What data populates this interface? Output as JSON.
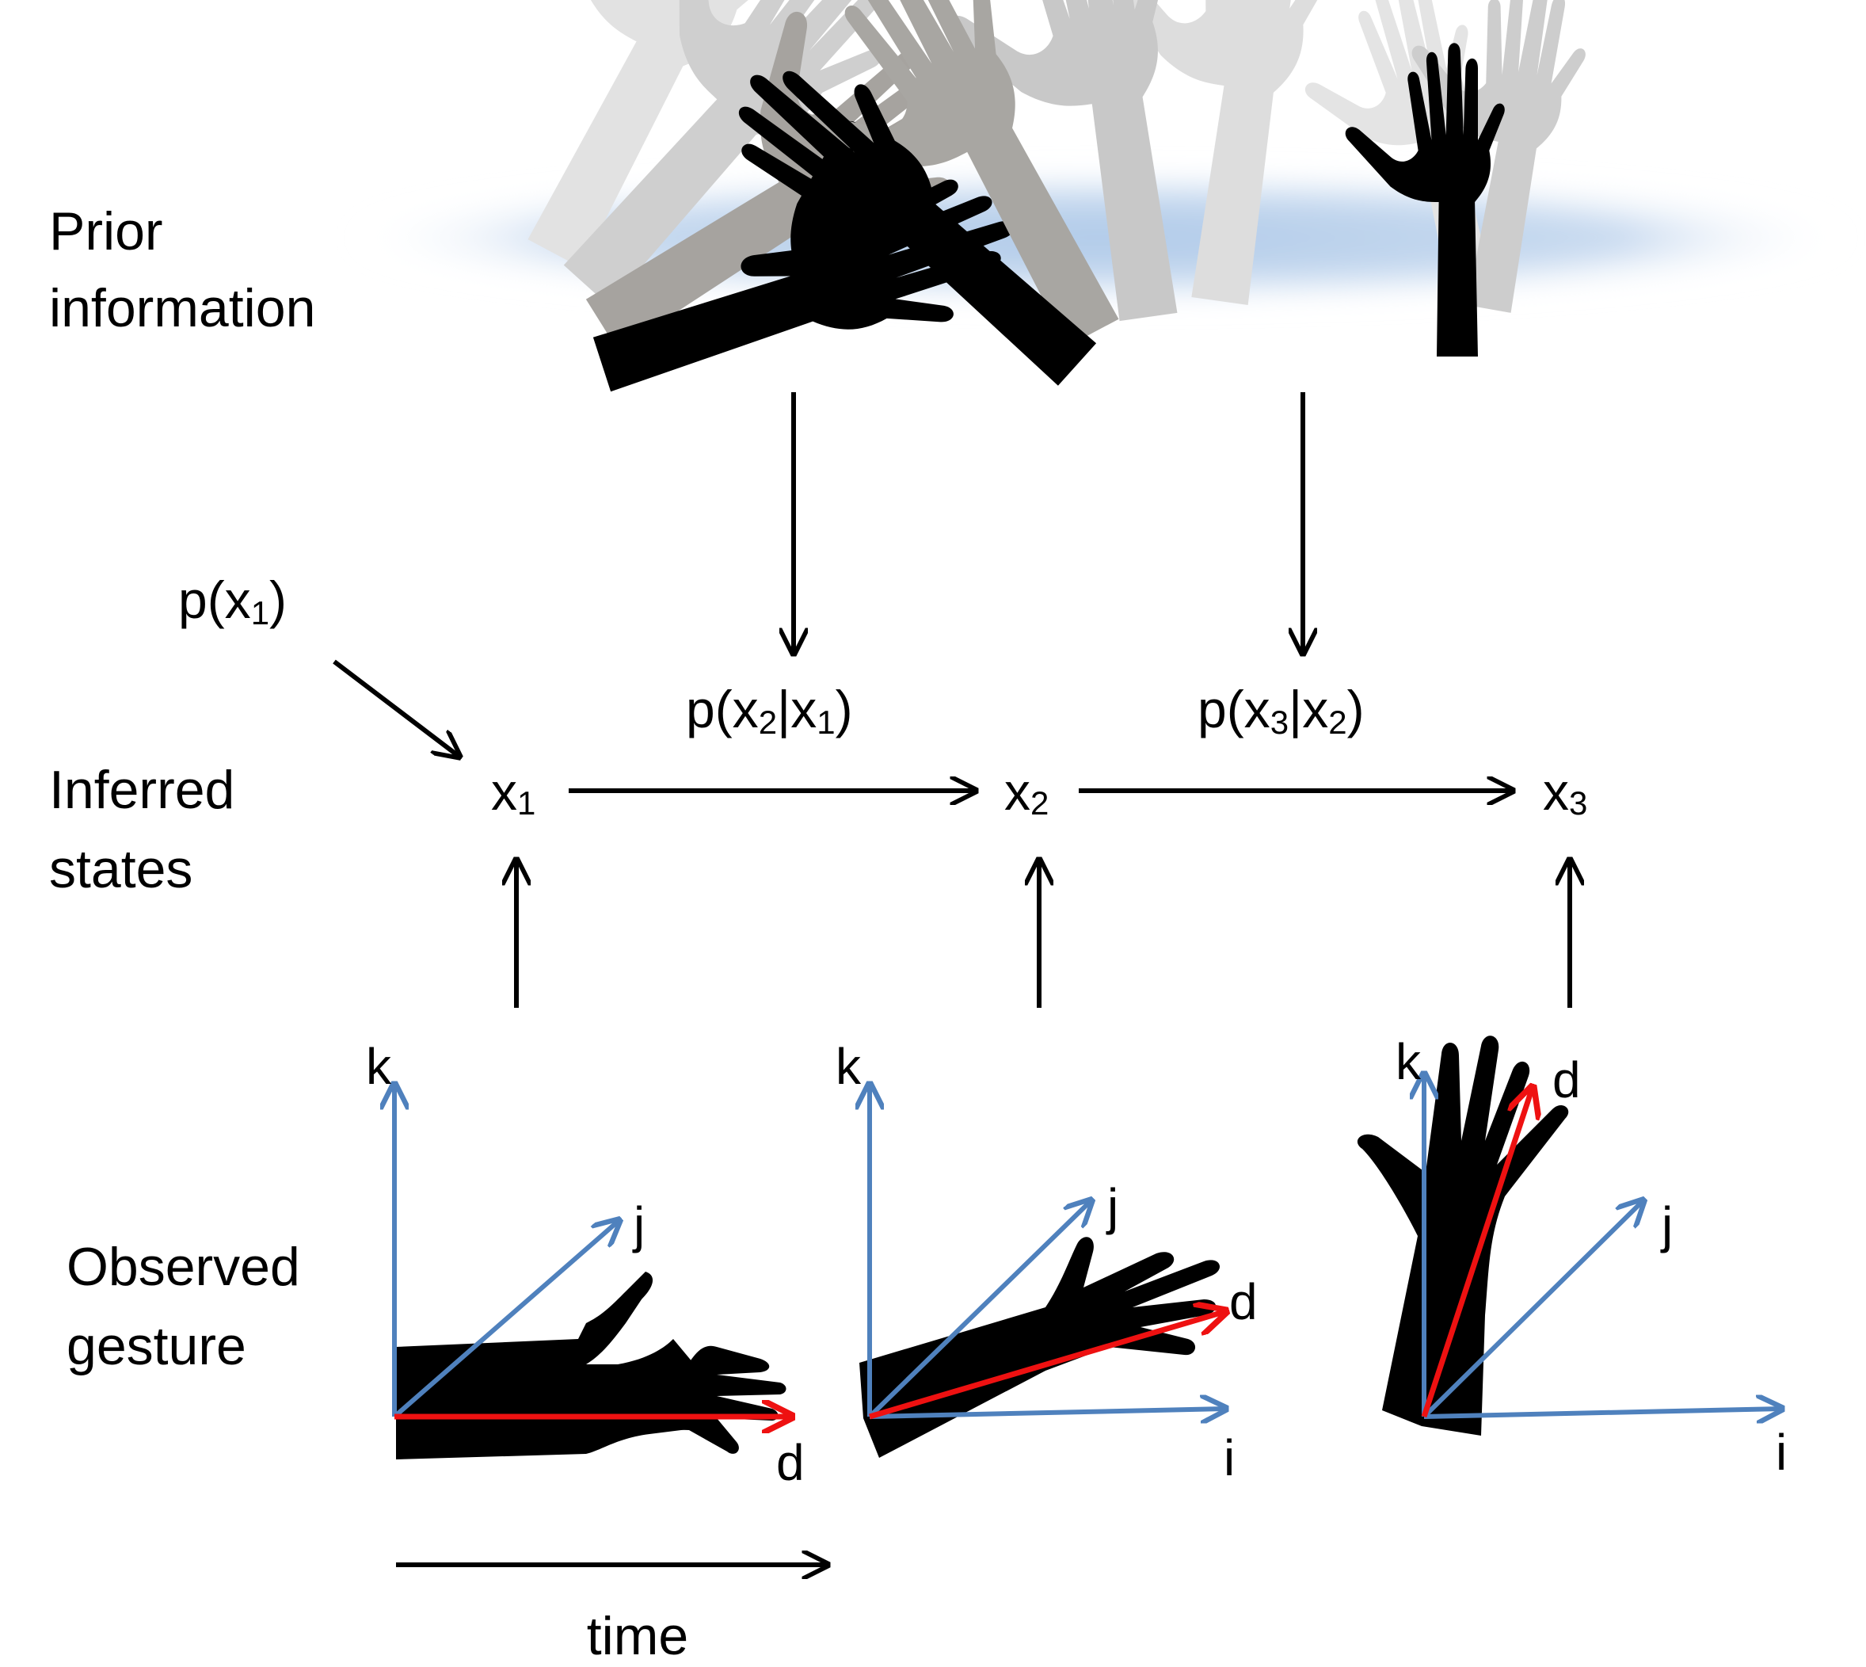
{
  "row_labels": {
    "prior": [
      "Prior",
      "information"
    ],
    "inferred": [
      "Inferred",
      "states"
    ],
    "observed": [
      "Observed",
      "gesture"
    ]
  },
  "probabilities": {
    "p_x1": {
      "open": "p(x",
      "sub": "1",
      "close": ")"
    },
    "p_x2_x1": {
      "open": "p(x",
      "sub1": "2",
      "mid": "|x",
      "sub2": "1",
      "close": ")"
    },
    "p_x3_x2": {
      "open": "p(x",
      "sub1": "3",
      "mid": "|x",
      "sub2": "2",
      "close": ")"
    }
  },
  "states": [
    {
      "base": "x",
      "sub": "1"
    },
    {
      "base": "x",
      "sub": "2"
    },
    {
      "base": "x",
      "sub": "3"
    }
  ],
  "axes": [
    {
      "k": "k",
      "j": "j",
      "d": "d"
    },
    {
      "k": "k",
      "j": "j",
      "d": "d",
      "i": "i"
    },
    {
      "k": "k",
      "j": "j",
      "d": "d",
      "i": "i"
    }
  ],
  "time_label": "time",
  "colors": {
    "axis_blue": "#4f81bd",
    "direction_red": "#ee1111",
    "prior_cloud": "#b9d0ea",
    "silhouette": "#000000"
  },
  "icons": [
    "hand-silhouette-icon"
  ]
}
